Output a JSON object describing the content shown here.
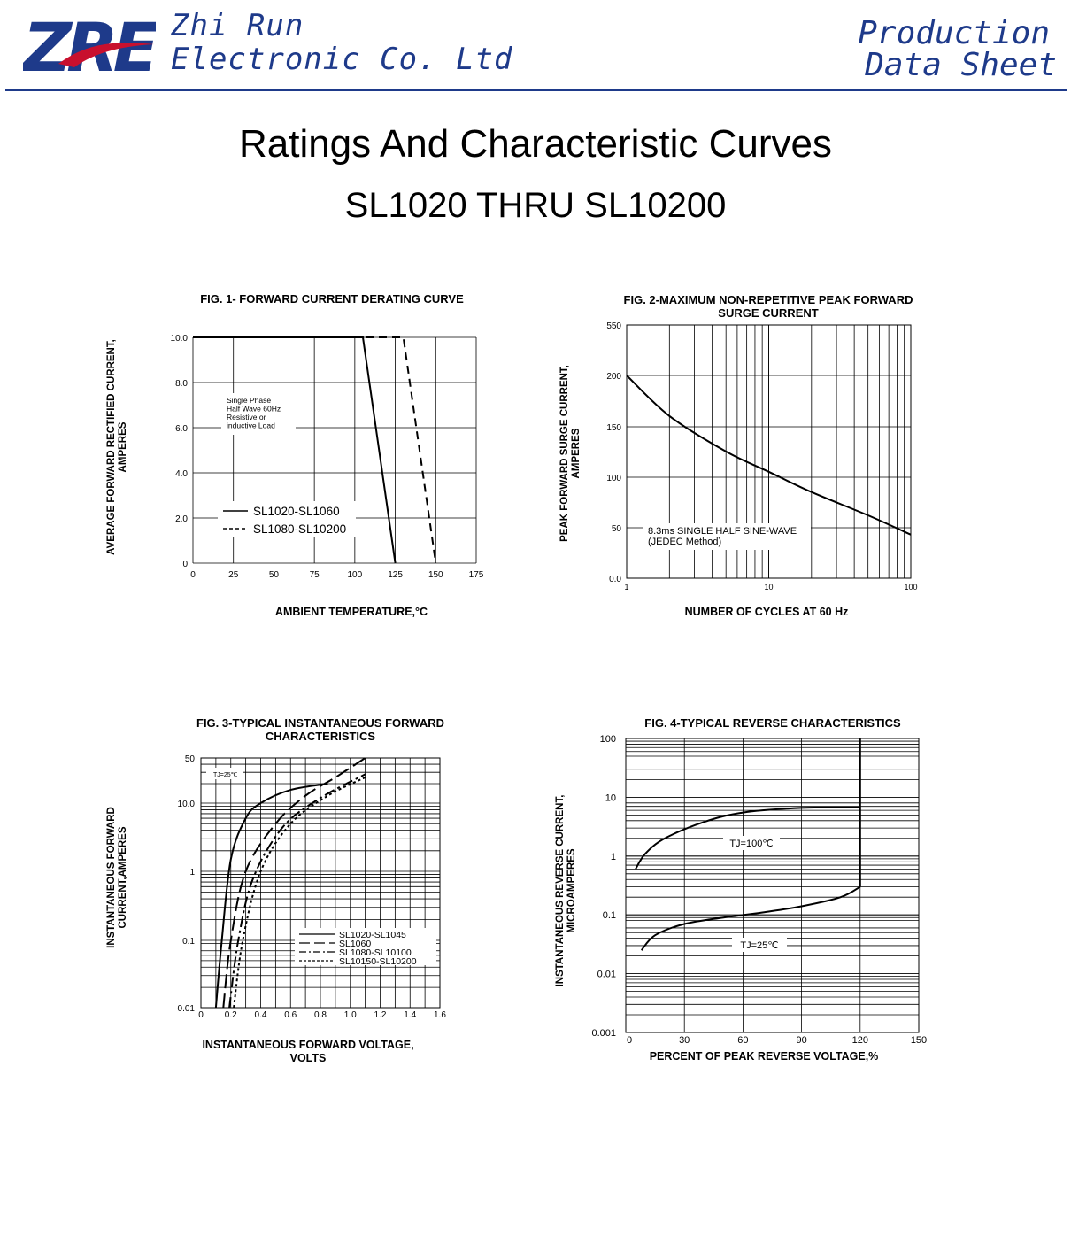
{
  "header": {
    "logo_text": "ZRE",
    "company_line1": "Zhi Run",
    "company_line2": "Electronic Co. Ltd",
    "doc_type_line1": "Production",
    "doc_type_line2": "Data Sheet",
    "brand_color": "#1e3a8a",
    "accent_color": "#c8102e"
  },
  "page": {
    "title": "Ratings And  Characteristic Curves",
    "subtitle": "SL1020 THRU SL10200"
  },
  "chart_data": [
    {
      "id": "fig1",
      "type": "line",
      "title": "FIG. 1- FORWARD CURRENT DERATING CURVE",
      "xlabel": "AMBIENT TEMPERATURE,°C",
      "ylabel": [
        "AVERAGE FORWARD RECTIFIED CURRENT,",
        "AMPERES"
      ],
      "xlim": [
        0,
        175
      ],
      "ylim": [
        0,
        10
      ],
      "xticks": [
        0,
        25,
        50,
        75,
        100,
        125,
        150,
        175
      ],
      "xtick_labels": [
        "0",
        "25",
        "50",
        "75",
        "100",
        "125",
        "150",
        "175"
      ],
      "yticks": [
        0,
        2,
        4,
        6,
        8,
        10
      ],
      "ytick_labels": [
        "0",
        "2.0",
        "4.0",
        "6.0",
        "8.0",
        "10.0"
      ],
      "grid": true,
      "annotation": [
        "Single Phase",
        "Half Wave 60Hz",
        "Resistive or",
        "inductive Load"
      ],
      "series": [
        {
          "name": "SL1020-SL1060",
          "style": "solid",
          "x": [
            0,
            105,
            125
          ],
          "y": [
            10,
            10,
            0
          ]
        },
        {
          "name": "SL1080-SL10200",
          "style": "dashed",
          "x": [
            0,
            130,
            150
          ],
          "y": [
            10,
            10,
            0
          ]
        }
      ]
    },
    {
      "id": "fig2",
      "type": "line",
      "title": [
        "FIG. 2-MAXIMUM NON-REPETITIVE PEAK FORWARD",
        "SURGE CURRENT"
      ],
      "xlabel": "NUMBER OF CYCLES AT 60 Hz",
      "ylabel": [
        "PEAK  FORWARD SURGE CURRENT,",
        "AMPERES"
      ],
      "xscale": "log",
      "xlim": [
        1,
        100
      ],
      "xtick_labels": [
        "1",
        "10",
        "100"
      ],
      "ytick_labels": [
        "0.0",
        "50",
        "100",
        "150",
        "200",
        "550"
      ],
      "grid": true,
      "annotation": [
        "8.3ms SINGLE HALF SINE-WAVE",
        "(JEDEC Method)"
      ],
      "series": [
        {
          "name": "",
          "style": "solid",
          "x": [
            1,
            2,
            5,
            10,
            20,
            50,
            100
          ],
          "y": [
            200,
            160,
            125,
            105,
            85,
            62,
            43
          ]
        }
      ]
    },
    {
      "id": "fig3",
      "type": "line",
      "title": [
        "FIG. 3-TYPICAL INSTANTANEOUS FORWARD",
        "CHARACTERISTICS"
      ],
      "xlabel": [
        "INSTANTANEOUS FORWARD VOLTAGE,",
        "VOLTS"
      ],
      "ylabel": [
        "INSTANTANEOUS FORWARD",
        "CURRENT,AMPERES"
      ],
      "yscale": "log",
      "xlim": [
        0,
        1.6
      ],
      "ylim": [
        0.01,
        50
      ],
      "xtick_labels": [
        "0",
        "0.2",
        "0.4",
        "0.6",
        "0.8",
        "1.0",
        "1.2",
        "1.4",
        "1.6"
      ],
      "ytick_labels": [
        "0.01",
        "0.1",
        "1",
        "10.0",
        "50"
      ],
      "grid": true,
      "annotation": "TJ=25℃",
      "series": [
        {
          "name": "SL1020-SL1045",
          "style": "solid",
          "x": [
            0.1,
            0.14,
            0.2,
            0.3,
            0.4,
            0.6,
            0.85
          ],
          "y": [
            0.01,
            0.1,
            1.5,
            6,
            10,
            16,
            20
          ]
        },
        {
          "name": "SL1060",
          "style": "longdash",
          "x": [
            0.15,
            0.2,
            0.3,
            0.5,
            0.7,
            0.9,
            1.1
          ],
          "y": [
            0.01,
            0.1,
            1.0,
            5,
            13,
            25,
            50
          ]
        },
        {
          "name": "SL1080-SL10100",
          "style": "dashdot",
          "x": [
            0.19,
            0.25,
            0.35,
            0.55,
            0.8,
            1.1
          ],
          "y": [
            0.01,
            0.1,
            0.8,
            4.5,
            12,
            28
          ]
        },
        {
          "name": "SL10150-SL10200",
          "style": "dotted",
          "x": [
            0.22,
            0.28,
            0.4,
            0.6,
            0.85,
            1.1
          ],
          "y": [
            0.01,
            0.1,
            1.0,
            5,
            13,
            25
          ]
        }
      ]
    },
    {
      "id": "fig4",
      "type": "line",
      "title": "FIG. 4-TYPICAL REVERSE CHARACTERISTICS",
      "xlabel": "PERCENT OF PEAK REVERSE VOLTAGE,%",
      "ylabel": [
        "INSTANTANEOUS REVERSE CURRENT,",
        "MICROAMPERES"
      ],
      "yscale": "log",
      "xlim": [
        0,
        150
      ],
      "ylim": [
        0.001,
        100
      ],
      "xtick_labels": [
        "0",
        "30",
        "60",
        "90",
        "120",
        "150"
      ],
      "ytick_labels": [
        "0.001",
        "0.01",
        "0.1",
        "1",
        "10",
        "100"
      ],
      "grid": true,
      "series": [
        {
          "name": "TJ=100℃",
          "style": "solid",
          "x": [
            5,
            10,
            20,
            40,
            60,
            90,
            120,
            120
          ],
          "y": [
            0.6,
            1.1,
            2.0,
            3.8,
            5.5,
            6.6,
            6.8,
            100
          ]
        },
        {
          "name": "TJ=25℃",
          "style": "solid",
          "x": [
            8,
            15,
            30,
            50,
            70,
            90,
            110,
            120,
            120
          ],
          "y": [
            0.025,
            0.045,
            0.07,
            0.09,
            0.11,
            0.14,
            0.2,
            0.3,
            6.8
          ]
        }
      ]
    }
  ]
}
